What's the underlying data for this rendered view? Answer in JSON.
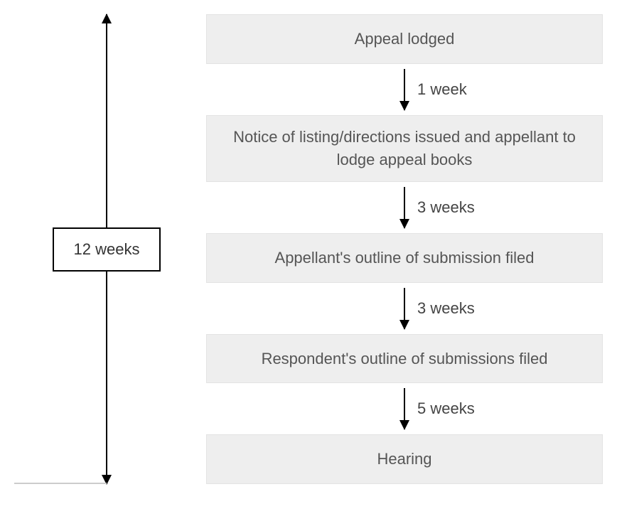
{
  "flowchart": {
    "type": "flowchart",
    "background_color": "#ffffff",
    "box_bg_color": "#eeeeee",
    "box_border_color": "#e3e3e3",
    "text_color": "#555555",
    "arrow_color": "#000000",
    "font_family": "Helvetica Neue",
    "box_fontsize": 22,
    "label_fontsize": 22,
    "timeline": {
      "total_label": "12 weeks",
      "badge_border_color": "#000000",
      "badge_bg_color": "#ffffff"
    },
    "steps": [
      {
        "label": "Appeal lodged"
      },
      {
        "label": "Notice of listing/directions issued and appellant to lodge appeal books"
      },
      {
        "label": "Appellant's outline of submission filed"
      },
      {
        "label": "Respondent's outline of submissions filed"
      },
      {
        "label": "Hearing"
      }
    ],
    "edges": [
      {
        "from": 0,
        "to": 1,
        "label": "1 week"
      },
      {
        "from": 1,
        "to": 2,
        "label": "3 weeks"
      },
      {
        "from": 2,
        "to": 3,
        "label": "3 weeks"
      },
      {
        "from": 3,
        "to": 4,
        "label": "5 weeks"
      }
    ]
  }
}
